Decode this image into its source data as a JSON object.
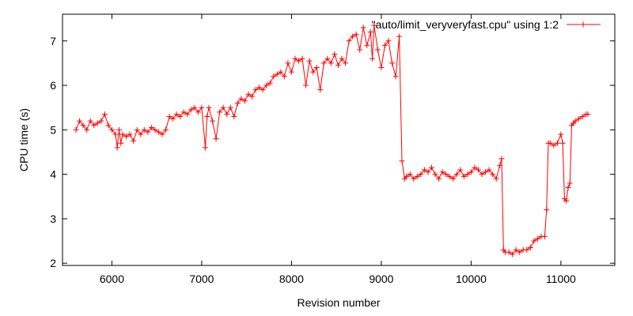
{
  "chart_data": {
    "type": "line",
    "xlabel": "Revision number",
    "ylabel": "CPU time (s)",
    "xlim": [
      5450,
      11600
    ],
    "ylim": [
      1.95,
      7.6
    ],
    "xticks": [
      6000,
      7000,
      8000,
      9000,
      10000,
      11000
    ],
    "yticks": [
      2,
      3,
      4,
      5,
      6,
      7
    ],
    "grid": false,
    "legend": "top-right",
    "series": [
      {
        "name": "\"auto/limit_veryveryfast.cpu\" using 1:2",
        "color": "#ff0000",
        "marker": "plus",
        "x": [
          5600,
          5640,
          5680,
          5720,
          5760,
          5800,
          5840,
          5880,
          5920,
          5960,
          6000,
          6040,
          6060,
          6080,
          6100,
          6120,
          6160,
          6200,
          6240,
          6280,
          6320,
          6360,
          6400,
          6440,
          6480,
          6520,
          6560,
          6600,
          6640,
          6680,
          6720,
          6760,
          6800,
          6840,
          6880,
          6920,
          6960,
          7000,
          7040,
          7060,
          7080,
          7120,
          7160,
          7200,
          7240,
          7280,
          7320,
          7360,
          7400,
          7440,
          7480,
          7520,
          7560,
          7600,
          7640,
          7680,
          7720,
          7760,
          7800,
          7840,
          7880,
          7920,
          7960,
          8000,
          8040,
          8080,
          8120,
          8160,
          8200,
          8240,
          8280,
          8320,
          8360,
          8400,
          8440,
          8480,
          8520,
          8560,
          8600,
          8640,
          8680,
          8720,
          8760,
          8800,
          8840,
          8880,
          8900,
          8920,
          8960,
          9000,
          9040,
          9080,
          9120,
          9160,
          9200,
          9230,
          9260,
          9280,
          9320,
          9360,
          9400,
          9440,
          9480,
          9520,
          9560,
          9600,
          9640,
          9680,
          9720,
          9760,
          9800,
          9840,
          9880,
          9920,
          9960,
          10000,
          10040,
          10080,
          10120,
          10160,
          10200,
          10240,
          10280,
          10320,
          10340,
          10360,
          10380,
          10420,
          10460,
          10500,
          10540,
          10580,
          10620,
          10660,
          10700,
          10740,
          10780,
          10820,
          10840,
          10860,
          10880,
          10920,
          10960,
          11000,
          11020,
          11040,
          11060,
          11080,
          11100,
          11120,
          11140,
          11160,
          11200,
          11240,
          11280,
          11300
        ],
        "y": [
          5.0,
          5.2,
          5.1,
          5.0,
          5.2,
          5.1,
          5.15,
          5.2,
          5.35,
          5.1,
          5.0,
          4.9,
          4.6,
          5.0,
          4.7,
          4.9,
          4.85,
          4.9,
          4.75,
          5.0,
          4.9,
          5.0,
          4.95,
          5.05,
          5.0,
          4.95,
          4.9,
          5.0,
          5.3,
          5.25,
          5.35,
          5.3,
          5.4,
          5.35,
          5.45,
          5.5,
          5.4,
          5.5,
          4.6,
          5.3,
          5.5,
          5.2,
          4.8,
          5.4,
          5.5,
          5.35,
          5.5,
          5.3,
          5.6,
          5.7,
          5.65,
          5.8,
          5.75,
          5.9,
          5.95,
          5.9,
          6.0,
          6.05,
          6.2,
          6.25,
          6.3,
          6.2,
          6.5,
          6.3,
          6.6,
          6.55,
          6.6,
          6.0,
          6.55,
          6.3,
          6.4,
          5.9,
          6.5,
          6.6,
          6.5,
          6.7,
          6.45,
          6.6,
          6.5,
          7.0,
          7.1,
          7.15,
          6.8,
          7.3,
          6.9,
          7.2,
          6.6,
          7.35,
          6.8,
          6.4,
          6.9,
          7.0,
          6.5,
          6.2,
          7.1,
          4.3,
          3.9,
          3.95,
          4.0,
          3.9,
          3.95,
          4.0,
          4.1,
          4.05,
          4.15,
          4.0,
          3.9,
          4.05,
          4.0,
          3.95,
          3.9,
          4.0,
          4.1,
          3.95,
          4.0,
          4.05,
          4.15,
          4.1,
          4.0,
          4.05,
          4.1,
          4.0,
          3.9,
          4.2,
          4.35,
          2.3,
          2.25,
          2.25,
          2.2,
          2.3,
          2.25,
          2.3,
          2.3,
          2.35,
          2.5,
          2.55,
          2.6,
          2.6,
          3.2,
          4.7,
          4.7,
          4.65,
          4.7,
          4.9,
          4.7,
          3.45,
          3.4,
          3.7,
          3.8,
          5.1,
          5.15,
          5.2,
          5.25,
          5.3,
          5.35,
          5.35
        ]
      }
    ]
  }
}
